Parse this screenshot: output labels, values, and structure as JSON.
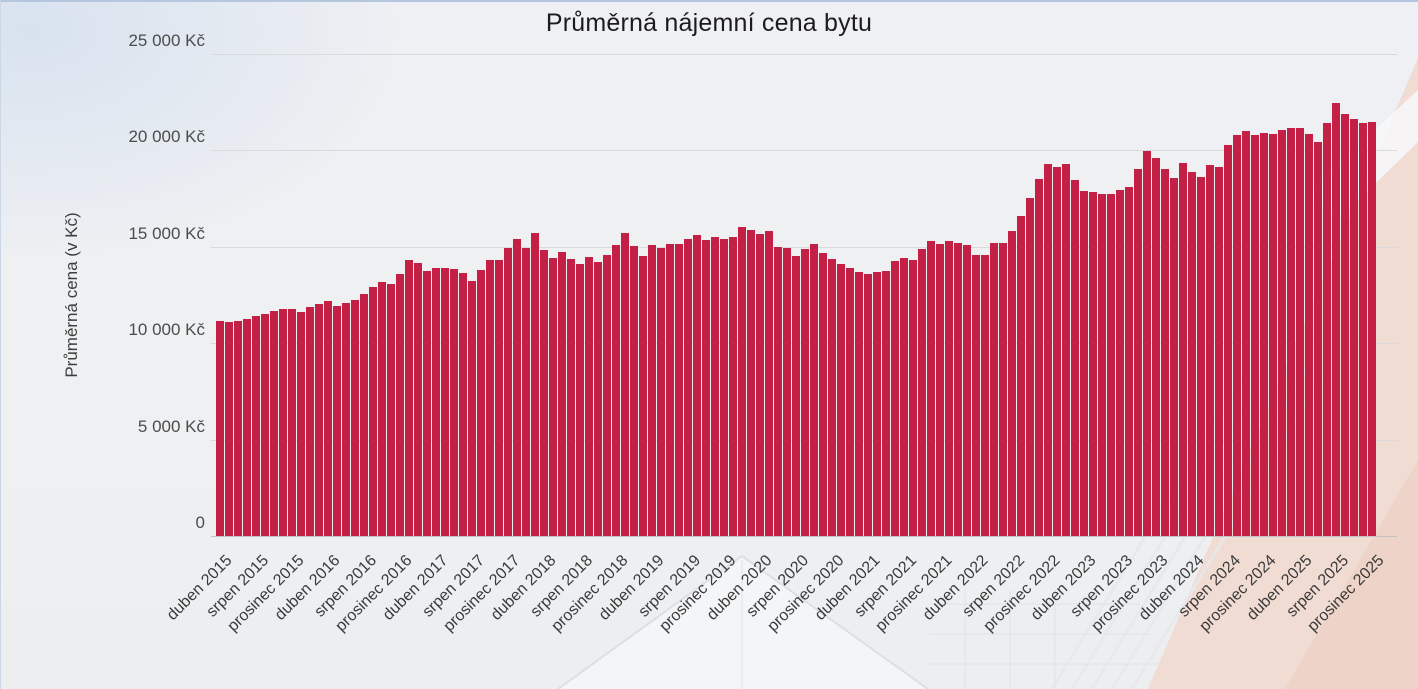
{
  "page": {
    "background_color": "#eef0f2",
    "top_edge_color": "#b7c6df"
  },
  "chart_data": {
    "type": "bar",
    "title": "Průměrná nájemní cena bytu",
    "xlabel": "",
    "ylabel": "Průměrná cena (v Kč)",
    "bar_color": "#c42045",
    "grid": true,
    "gridline_color": "#d8dadc",
    "zero_line_color": "#c2c2c2",
    "legend": false,
    "ylim": [
      0,
      25000
    ],
    "y_ticks": [
      {
        "value": 25000,
        "label": "25 000 Kč"
      },
      {
        "value": 20000,
        "label": "20 000 Kč"
      },
      {
        "value": 15000,
        "label": "15 000 Kč"
      },
      {
        "value": 10000,
        "label": "10 000 Kč"
      },
      {
        "value": 5000,
        "label": "5 000 Kč"
      },
      {
        "value": 0,
        "label": "0"
      }
    ],
    "series_start": "duben 2015",
    "series_frequency": "monthly",
    "x_tick_every": 4,
    "x_tick_labels": [
      "duben 2015",
      "srpen 2015",
      "prosinec 2015",
      "duben 2016",
      "srpen 2016",
      "prosinec 2016",
      "duben 2017",
      "srpen 2017",
      "prosinec 2017",
      "duben 2018",
      "srpen 2018",
      "prosinec 2018",
      "duben 2019",
      "srpen 2019",
      "prosinec 2019",
      "duben 2020",
      "srpen 2020",
      "prosinec 2020",
      "duben 2021",
      "srpen 2021",
      "prosinec 2021",
      "duben 2022",
      "srpen 2022",
      "prosinec 2022",
      "duben 2023",
      "srpen 2023",
      "prosinec 2023",
      "duben 2024",
      "srpen 2024",
      "prosinec 2024",
      "duben 2025",
      "srpen 2025",
      "prosinec 2025"
    ],
    "values": [
      11150,
      11100,
      11150,
      11250,
      11400,
      11500,
      11650,
      11750,
      11750,
      11600,
      11850,
      12000,
      12200,
      11900,
      12050,
      12250,
      12550,
      12900,
      13150,
      13050,
      13600,
      14300,
      14150,
      13750,
      13900,
      13900,
      13850,
      13650,
      13200,
      13800,
      14300,
      14300,
      14900,
      15400,
      14900,
      15700,
      14800,
      14400,
      14700,
      14350,
      14100,
      14450,
      14200,
      14550,
      15100,
      15700,
      15050,
      14500,
      15100,
      14900,
      15150,
      15150,
      15400,
      15600,
      15350,
      15500,
      15400,
      15500,
      16000,
      15850,
      15650,
      15800,
      14950,
      14900,
      14500,
      14850,
      15150,
      14650,
      14350,
      14100,
      13900,
      13700,
      13550,
      13700,
      13750,
      14250,
      14400,
      14300,
      14850,
      15300,
      15150,
      15300,
      15200,
      15100,
      14550,
      14550,
      15200,
      15200,
      15800,
      16600,
      17500,
      18500,
      19250,
      19100,
      19300,
      18450,
      17900,
      17800,
      17700,
      17700,
      17950,
      18100,
      19000,
      19950,
      19600,
      19000,
      18550,
      19350,
      18850,
      18600,
      19200,
      19100,
      20250,
      20800,
      21000,
      20800,
      20900,
      20850,
      21050,
      21150,
      21150,
      20850,
      20400,
      21400,
      22450,
      21850,
      21600,
      21400,
      21450
    ]
  }
}
